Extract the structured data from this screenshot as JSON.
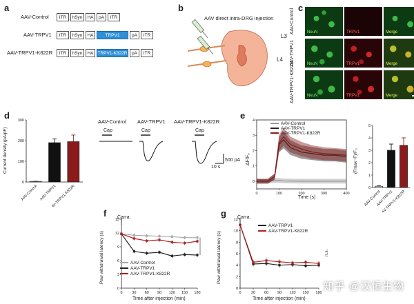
{
  "panels": {
    "a": "a",
    "b": "b",
    "c": "c",
    "d": "d",
    "e": "e",
    "f": "f",
    "g": "g"
  },
  "panel_a": {
    "constructs": [
      {
        "label": "AAV-Control",
        "blocks": [
          "ITR",
          "hSyn",
          "HA",
          "pA",
          "ITR"
        ]
      },
      {
        "label": "AAV-TRPV1",
        "blocks": [
          "ITR",
          "hSyn",
          "HA",
          "TRPV1",
          "pA",
          "ITR"
        ]
      },
      {
        "label": "AAV-TRPV1-K822R",
        "blocks": [
          "ITR",
          "hSyn",
          "HA",
          "TRPV1-K822R",
          "pA",
          "ITR"
        ]
      }
    ],
    "insert_color": "#2e8fd6"
  },
  "panel_b": {
    "title": "AAV direct intra-DRG injection",
    "l3": "L3",
    "l4": "L4"
  },
  "panel_c": {
    "rows": [
      "AAV-Control",
      "AAV-TRPV1",
      "AAV-TRPV1-K822R"
    ],
    "channels": [
      "NeuN",
      "TRPV1",
      "Merge"
    ],
    "colors": {
      "green": "#1a8a2a",
      "red": "#b01818",
      "merge": "#8a9a20"
    }
  },
  "panel_d": {
    "ylabel": "Current density (pA/pF)",
    "trace_titles": [
      "AAV-Control",
      "AAV-TRPV1",
      "AAV-TRPV1-K822R"
    ],
    "cap": "Cap",
    "scale_time": "10 s",
    "scale_amp": "500 pA"
  },
  "panel_e": {
    "legend": [
      "AAV-Control",
      "AAV-TRPV1",
      "AAV-TRPV1-K822R"
    ],
    "ylabel": "ΔF/F₀",
    "xlabel": "Time (s)",
    "xticks": [
      "0",
      "100",
      "200",
      "300",
      "400"
    ],
    "bar_ylabel": "(Fmax−F)/F₀"
  },
  "panel_f": {
    "annotation": "Carra.",
    "ylabel": "Paw withdrawal latency (s)",
    "xlabel": "Time after injection (min)",
    "legend": [
      "AAV-Control",
      "AAV-TRPV1",
      "AAV-TRPV1-K822R"
    ]
  },
  "panel_g": {
    "annotation": "Carra.",
    "ylabel": "Paw withdrawal latency (s)",
    "xlabel": "Time after injection (min)",
    "legend": [
      "AAV-TRPV1",
      "AAV-TRPV1-K822R"
    ],
    "sig": "n.s."
  },
  "watermark": "知乎 @汉恒生物",
  "chart_data": [
    {
      "type": "bar",
      "categories": [
        "AAV-Control",
        "AAV-TRPV1",
        "AAV-TRPV1-K822R"
      ],
      "values": [
        3,
        190,
        195
      ],
      "errors": [
        1,
        18,
        32
      ],
      "colors": [
        "#ffffff",
        "#111111",
        "#8b1a1a"
      ],
      "ylim": [
        0,
        300
      ],
      "yticks": [
        0,
        100,
        200,
        300
      ],
      "ylabel": "Current density (pA/pF)"
    },
    {
      "type": "line",
      "x": [
        0,
        50,
        80,
        100,
        120,
        150,
        200,
        250,
        300,
        350,
        400
      ],
      "series": [
        {
          "name": "AAV-Control",
          "values": [
            0,
            0,
            0.05,
            0.05,
            0.02,
            0.01,
            0.0,
            0.0,
            0.0,
            0.0,
            0.0
          ],
          "color": "#999999"
        },
        {
          "name": "AAV-TRPV1",
          "values": [
            0,
            0,
            0.3,
            2.4,
            2.7,
            2.2,
            1.9,
            1.8,
            1.7,
            1.7,
            1.6
          ],
          "color": "#222222"
        },
        {
          "name": "AAV-TRPV1-K822R",
          "values": [
            0,
            0,
            0.3,
            2.5,
            2.9,
            2.4,
            2.1,
            1.9,
            1.8,
            1.75,
            1.7
          ],
          "color": "#8b1a1a"
        }
      ],
      "xlim": [
        0,
        400
      ],
      "ylim": [
        -0.5,
        4
      ],
      "xticks": [
        0,
        100,
        200,
        300,
        400
      ],
      "yticks": [
        0,
        1,
        2,
        3,
        4
      ],
      "xlabel": "Time (s)",
      "ylabel": "ΔF/F₀"
    },
    {
      "type": "bar",
      "categories": [
        "AAV-Control",
        "AAV-TRPV1",
        "AAV-TRPV1-K822R"
      ],
      "values": [
        0.1,
        3.0,
        3.4
      ],
      "errors": [
        0.05,
        0.5,
        0.6
      ],
      "colors": [
        "#ffffff",
        "#111111",
        "#8b1a1a"
      ],
      "ylim": [
        0,
        5
      ],
      "yticks": [
        0,
        1,
        2,
        3,
        4,
        5
      ],
      "ylabel": "(Fmax−F)/F₀"
    },
    {
      "type": "line",
      "x": [
        0,
        30,
        60,
        90,
        120,
        150,
        180
      ],
      "series": [
        {
          "name": "AAV-Control",
          "values": [
            11.8,
            11.5,
            11.4,
            11.3,
            11.2,
            11.0,
            11.0
          ],
          "color": "#aaaaaa"
        },
        {
          "name": "AAV-TRPV1",
          "values": [
            11.8,
            8.0,
            7.6,
            7.8,
            7.0,
            7.3,
            7.2
          ],
          "color": "#222222"
        },
        {
          "name": "AAV-TRPV1-K822R",
          "values": [
            11.8,
            10.8,
            10.3,
            10.5,
            10.0,
            9.8,
            10.2
          ],
          "color": "#b02020"
        }
      ],
      "xlim": [
        0,
        180
      ],
      "ylim": [
        0,
        15
      ],
      "xticks": [
        0,
        30,
        60,
        90,
        120,
        150,
        180
      ],
      "yticks": [
        0,
        3,
        6,
        9,
        12,
        15
      ],
      "xlabel": "Time after injection (min)",
      "ylabel": "Paw withdrawal latency (s)"
    },
    {
      "type": "line",
      "x": [
        0,
        30,
        60,
        90,
        120,
        150,
        180
      ],
      "series": [
        {
          "name": "AAV-TRPV1",
          "values": [
            11.0,
            4.2,
            4.3,
            4.0,
            4.1,
            3.9,
            4.0
          ],
          "color": "#222222"
        },
        {
          "name": "AAV-TRPV1-K822R",
          "values": [
            11.0,
            4.5,
            4.8,
            4.6,
            4.4,
            4.5,
            4.3
          ],
          "color": "#b02020"
        }
      ],
      "xlim": [
        0,
        180
      ],
      "ylim": [
        0,
        12
      ],
      "xticks": [
        0,
        30,
        60,
        90,
        120,
        150,
        180
      ],
      "yticks": [
        0,
        2,
        4,
        6,
        8,
        10,
        12
      ],
      "xlabel": "Time after injection (min)",
      "ylabel": "Paw withdrawal latency (s)"
    }
  ]
}
